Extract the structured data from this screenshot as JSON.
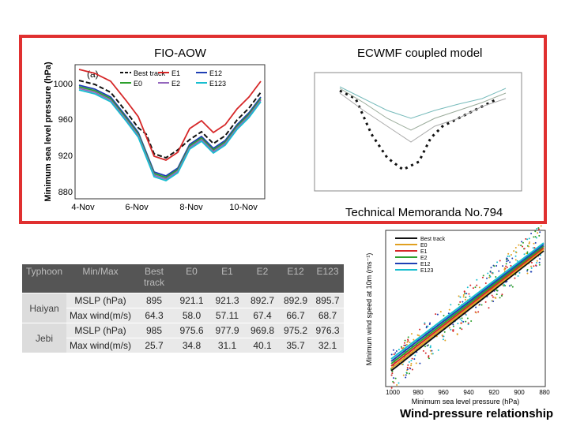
{
  "top_panel": {
    "left_label": "FIO-AOW",
    "right_label": "ECWMF coupled model",
    "caption": "Technical Memoranda No.794"
  },
  "figure_a": {
    "panel": "(a)",
    "y_label": "Minimum sea level pressure (hPa)",
    "y_ticks": [
      "1000",
      "960",
      "920",
      "880"
    ],
    "x_ticks": [
      "4-Nov",
      "6-Nov",
      "8-Nov",
      "10-Nov"
    ],
    "legend": [
      "Best track",
      "E1",
      "E12",
      "E0",
      "E2",
      "E123"
    ]
  },
  "table": {
    "header": [
      "Typhoon",
      "Min/Max",
      "Best track",
      "E0",
      "E1",
      "E2",
      "E12",
      "E123"
    ],
    "groups": [
      {
        "name": "Haiyan",
        "rows": [
          [
            "MSLP (hPa)",
            "895",
            "921.1",
            "921.3",
            "892.7",
            "892.9",
            "895.7"
          ],
          [
            "Max wind(m/s)",
            "64.3",
            "58.0",
            "57.11",
            "67.4",
            "66.7",
            "68.7"
          ]
        ]
      },
      {
        "name": "Jebi",
        "rows": [
          [
            "MSLP (hPa)",
            "985",
            "975.6",
            "977.9",
            "969.8",
            "975.2",
            "976.3"
          ],
          [
            "Max wind(m/s)",
            "25.7",
            "34.8",
            "31.1",
            "40.1",
            "35.7",
            "32.1"
          ]
        ]
      }
    ]
  },
  "scatter": {
    "y_label": "Minimum wind speed at 10m (ms⁻¹)",
    "x_label": "Minimum sea level pressure (hPa)",
    "x_ticks": [
      "1000",
      "980",
      "960",
      "940",
      "920",
      "900",
      "880"
    ],
    "legend": [
      "Best track",
      "E0",
      "E1",
      "E2",
      "E12",
      "E123"
    ],
    "caption": "Wind-pressure relationship"
  }
}
